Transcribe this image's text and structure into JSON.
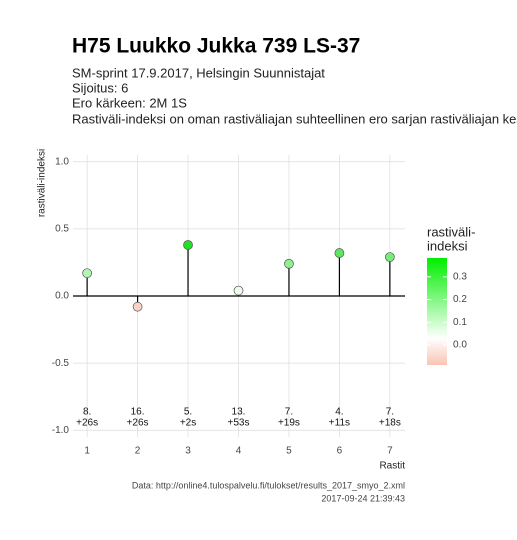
{
  "chart_data": {
    "type": "lollipop",
    "title": "H75 Luukko Jukka 739 LS-37",
    "subtitle": [
      "SM-sprint 17.9.2017, Helsingin Suunnistajat",
      "Sijoitus: 6",
      "Ero kärkeen: 2M 1S",
      "Rastiväli-indeksi on oman rastiväliajan suhteellinen ero sarjan rastiväliajan kes"
    ],
    "x_label": "Rastit",
    "y_label": "rastiväli-indeksi",
    "x": [
      1,
      2,
      3,
      4,
      5,
      6,
      7
    ],
    "values": [
      0.17,
      -0.08,
      0.38,
      0.04,
      0.24,
      0.32,
      0.29
    ],
    "point_colors": [
      "#b3f5b3",
      "#fbd3c6",
      "#22e022",
      "#eefcee",
      "#8ef08e",
      "#5ee75e",
      "#78ec78"
    ],
    "point_labels": [
      [
        "8.",
        "+26s"
      ],
      [
        "16.",
        "+26s"
      ],
      [
        "5.",
        "+2s"
      ],
      [
        "13.",
        "+53s"
      ],
      [
        "7.",
        "+19s"
      ],
      [
        "4.",
        "+11s"
      ],
      [
        "7.",
        "+18s"
      ]
    ],
    "xlim": [
      0.72,
      7.3
    ],
    "xticks": [
      1,
      2,
      3,
      4,
      5,
      6,
      7
    ],
    "ylim": [
      -1.05,
      1.05
    ],
    "yticks": [
      {
        "value": -1,
        "label": "-1.0"
      },
      {
        "value": -0.5,
        "label": "-0.5"
      },
      {
        "value": 0,
        "label": "0.0"
      },
      {
        "value": 0.5,
        "label": "0.5"
      },
      {
        "value": 1,
        "label": "1.0"
      }
    ],
    "grid": true,
    "legend_title": [
      "rastiväli-",
      "indeksi"
    ],
    "colorbar_lim": [
      -0.088,
      0.383
    ],
    "colorbar_ticks": [
      {
        "value": 0,
        "label": "0.0"
      },
      0.1,
      0.2,
      0.3
    ],
    "colorbar_stops": [
      {
        "value": -0.088,
        "color": "#f9c4b3"
      },
      {
        "value": 0.03,
        "color": "#ffffff"
      },
      {
        "value": 0.383,
        "color": "#00ee00"
      }
    ],
    "caption": [
      "Data: http://online4.tulospalvelu.fi/tulokset/results_2017_smyo_2.xml",
      "2017-09-24 21:39:43"
    ]
  }
}
